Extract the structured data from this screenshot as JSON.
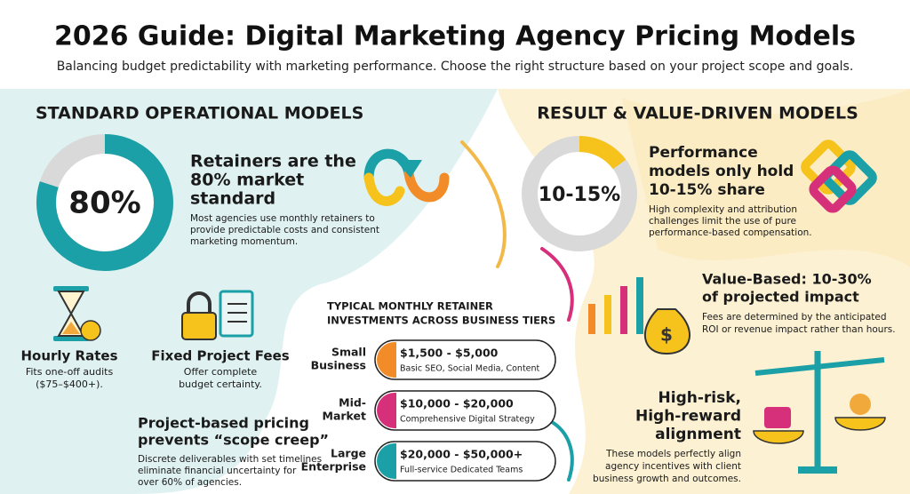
{
  "header": {
    "title": "2026 Guide: Digital Marketing Agency Pricing Models",
    "subtitle": "Balancing budget predictability with marketing performance. Choose the right structure based on your project scope and goals."
  },
  "standard": {
    "heading": "STANDARD OPERATIONAL MODELS",
    "stat": {
      "value": 80,
      "label": "80%"
    },
    "headline": [
      "Retainers are the",
      "80% market",
      "standard"
    ],
    "body": [
      "Most agencies use monthly retainers to",
      "provide predictable costs and consistent",
      "marketing momentum."
    ],
    "hourly": {
      "title": "Hourly Rates",
      "body": [
        "Fits one-off audits",
        "($75–$400+)."
      ]
    },
    "fixed": {
      "title": "Fixed Project Fees",
      "body": [
        "Offer complete",
        "budget certainty."
      ]
    },
    "project": {
      "title": [
        "Project-based pricing",
        "prevents “scope creep”"
      ],
      "body": [
        "Discrete deliverables with set timelines",
        "eliminate financial uncertainty for",
        "over 60% of agencies."
      ]
    }
  },
  "tiers": {
    "title": [
      "TYPICAL MONTHLY RETAINER",
      "INVESTMENTS ACROSS BUSINESS TIERS"
    ],
    "rows": [
      {
        "label": [
          "Small",
          "Business"
        ],
        "price": "$1,500 - $5,000",
        "detail": "Basic SEO, Social Media, Content",
        "color": "#f28c28"
      },
      {
        "label": [
          "Mid-",
          "Market"
        ],
        "price": "$10,000 - $20,000",
        "detail": "Comprehensive Digital Strategy",
        "color": "#d6307a"
      },
      {
        "label": [
          "Large",
          "Enterprise"
        ],
        "price": "$20,000 - $50,000+",
        "detail": "Full-service Dedicated Teams",
        "color": "#1aa0a6"
      }
    ]
  },
  "results": {
    "heading": "RESULT & VALUE-DRIVEN MODELS",
    "stat": "10-15%",
    "performance": {
      "title": [
        "Performance",
        "models only hold",
        "10-15% share"
      ],
      "body": [
        "High complexity and attribution",
        "challenges limit the use of pure",
        "performance-based compensation."
      ]
    },
    "value": {
      "title": [
        "Value-Based: 10-30%",
        "of projected impact"
      ],
      "body": [
        "Fees are determined by the anticipated",
        "ROI or revenue impact rather than hours."
      ]
    },
    "alignment": {
      "title": [
        "High-risk,",
        "High-reward",
        "alignment"
      ],
      "body": [
        "These models perfectly align",
        "agency incentives with client",
        "business growth and outcomes."
      ]
    }
  }
}
